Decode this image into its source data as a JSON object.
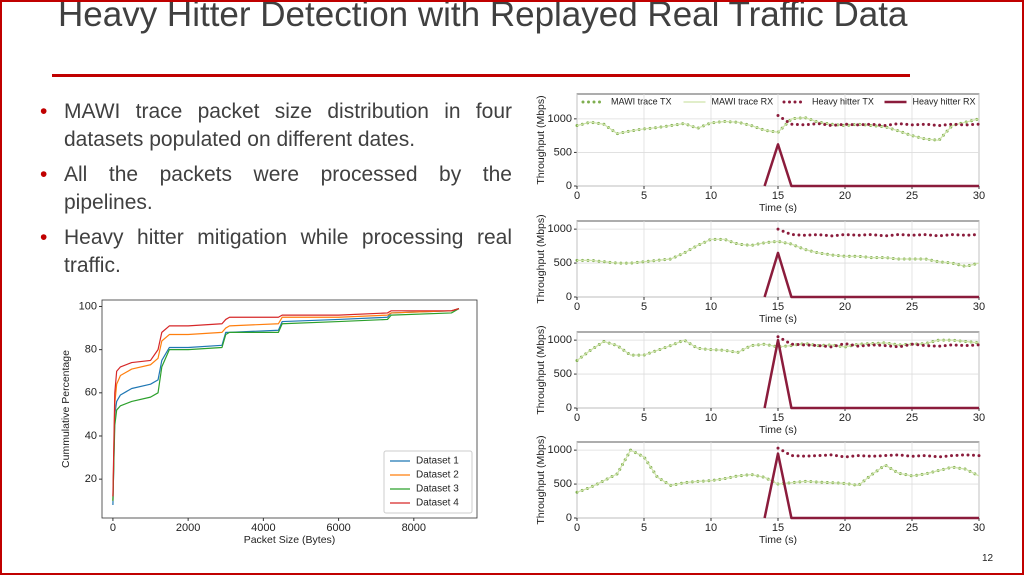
{
  "title": "Heavy Hitter Detection with Replayed Real Traffic Data",
  "bullets": [
    "MAWI trace packet size distribution in four datasets populated on different dates.",
    "All the packets were processed by the pipelines.",
    "Heavy hitter mitigation while processing real traffic."
  ],
  "page_number": "12",
  "chart_data": [
    {
      "type": "line",
      "x_label": "Packet Size (Bytes)",
      "y_label": "Cummulative Percentage",
      "grid": false,
      "legend": "lower right",
      "xlim": [
        -290,
        9680
      ],
      "xticks": [
        0,
        2000,
        4000,
        6000,
        8000
      ],
      "ylim": [
        2,
        103
      ],
      "yticks": [
        20,
        40,
        60,
        80,
        100
      ],
      "x": [
        0,
        50,
        100,
        200,
        500,
        1000,
        1200,
        1300,
        1500,
        2000,
        2900,
        3000,
        3100,
        4400,
        4500,
        6000,
        7300,
        7400,
        9000,
        9200
      ],
      "series": [
        {
          "name": "Dataset 1",
          "color": "#1f77b4",
          "line_style": "solid",
          "line_width": 1.2,
          "values": [
            8,
            50,
            56,
            59,
            62,
            64,
            66,
            75,
            81,
            81,
            82,
            88,
            88,
            89,
            93,
            94,
            95,
            97,
            98,
            99
          ]
        },
        {
          "name": "Dataset 2",
          "color": "#ff7f0e",
          "line_style": "solid",
          "line_width": 1.2,
          "values": [
            10,
            55,
            64,
            68,
            71,
            73,
            76,
            84,
            87,
            87,
            88,
            90,
            91,
            92,
            95,
            95,
            96,
            97,
            98,
            99
          ]
        },
        {
          "name": "Dataset 3",
          "color": "#2ca02c",
          "line_style": "solid",
          "line_width": 1.2,
          "values": [
            10,
            45,
            52,
            54,
            56,
            58,
            60,
            72,
            80,
            80,
            81,
            87,
            88,
            88,
            92,
            93,
            94,
            96,
            97,
            99
          ]
        },
        {
          "name": "Dataset 4",
          "color": "#d62728",
          "line_style": "solid",
          "line_width": 1.2,
          "values": [
            12,
            60,
            70,
            72,
            74,
            75,
            80,
            88,
            91,
            91,
            92,
            94,
            95,
            95,
            96,
            96,
            97,
            98,
            98,
            99
          ]
        }
      ]
    },
    {
      "type": "line",
      "x_label": "Time (s)",
      "y_label": "Throughput (Mbps)",
      "grid": true,
      "legend": "top",
      "xlim": [
        0,
        30
      ],
      "xticks": [
        0,
        5,
        10,
        15,
        20,
        25,
        30
      ],
      "ylim": [
        0,
        1370
      ],
      "yticks": [
        0,
        500,
        1000
      ],
      "x": [
        0,
        1,
        2,
        3,
        4,
        5,
        6,
        7,
        8,
        9,
        10,
        11,
        12,
        13,
        14,
        15,
        16,
        17,
        18,
        19,
        20,
        21,
        22,
        23,
        24,
        25,
        26,
        27,
        28,
        29,
        30
      ],
      "series": [
        {
          "name": "MAWI trace TX",
          "color": "#7fae4f",
          "line_style": "dotted",
          "line_width": 3,
          "values": [
            900,
            950,
            920,
            780,
            820,
            850,
            870,
            900,
            930,
            860,
            940,
            960,
            950,
            900,
            830,
            800,
            1000,
            1020,
            950,
            920,
            900,
            920,
            900,
            880,
            820,
            750,
            700,
            680,
            900,
            950,
            1000
          ]
        },
        {
          "name": "MAWI trace RX",
          "color": "#cfe3ab",
          "line_style": "solid",
          "line_width": 1.2,
          "values": [
            900,
            950,
            920,
            780,
            820,
            850,
            870,
            900,
            930,
            860,
            940,
            960,
            950,
            900,
            830,
            800,
            1000,
            1020,
            950,
            920,
            900,
            920,
            900,
            880,
            820,
            750,
            700,
            680,
            900,
            950,
            1000
          ]
        },
        {
          "name": "Heavy hitter TX",
          "color": "#8b1c3c",
          "line_style": "dotted",
          "line_width": 3,
          "values": [
            null,
            null,
            null,
            null,
            null,
            null,
            null,
            null,
            null,
            null,
            null,
            null,
            null,
            null,
            null,
            1050,
            920,
            910,
            930,
            900,
            920,
            910,
            920,
            900,
            930,
            910,
            920,
            900,
            920,
            910,
            920
          ]
        },
        {
          "name": "Heavy hitter RX",
          "color": "#8b1c3c",
          "line_style": "solid",
          "line_width": 2.5,
          "values": [
            null,
            null,
            null,
            null,
            null,
            null,
            null,
            null,
            null,
            null,
            null,
            null,
            null,
            null,
            0,
            620,
            0,
            0,
            0,
            0,
            0,
            0,
            0,
            0,
            0,
            0,
            0,
            0,
            0,
            0,
            0
          ]
        }
      ]
    },
    {
      "type": "line",
      "x_label": "Time (s)",
      "y_label": "Throughput (Mbps)",
      "grid": true,
      "xlim": [
        0,
        30
      ],
      "xticks": [
        0,
        5,
        10,
        15,
        20,
        25,
        30
      ],
      "ylim": [
        0,
        1120
      ],
      "yticks": [
        0,
        500,
        1000
      ],
      "x": [
        0,
        1,
        2,
        3,
        4,
        5,
        6,
        7,
        8,
        9,
        10,
        11,
        12,
        13,
        14,
        15,
        16,
        17,
        18,
        19,
        20,
        21,
        22,
        23,
        24,
        25,
        26,
        27,
        28,
        29,
        30
      ],
      "series": [
        {
          "color": "#7fae4f",
          "line_style": "dotted",
          "line_width": 3,
          "values": [
            540,
            540,
            520,
            500,
            500,
            520,
            540,
            560,
            650,
            760,
            850,
            850,
            780,
            760,
            800,
            820,
            780,
            700,
            650,
            620,
            600,
            600,
            580,
            580,
            560,
            560,
            560,
            520,
            500,
            450,
            500
          ]
        },
        {
          "color": "#cfe3ab",
          "line_style": "solid",
          "line_width": 1.2,
          "values": [
            540,
            540,
            520,
            500,
            500,
            520,
            540,
            560,
            650,
            760,
            850,
            850,
            780,
            760,
            800,
            820,
            780,
            700,
            650,
            620,
            600,
            600,
            580,
            580,
            560,
            560,
            560,
            520,
            500,
            450,
            500
          ]
        },
        {
          "color": "#8b1c3c",
          "line_style": "dotted",
          "line_width": 3,
          "values": [
            null,
            null,
            null,
            null,
            null,
            null,
            null,
            null,
            null,
            null,
            null,
            null,
            null,
            null,
            null,
            1000,
            920,
            910,
            920,
            900,
            920,
            910,
            920,
            900,
            920,
            910,
            920,
            900,
            920,
            910,
            920
          ]
        },
        {
          "color": "#8b1c3c",
          "line_style": "solid",
          "line_width": 2.5,
          "values": [
            null,
            null,
            null,
            null,
            null,
            null,
            null,
            null,
            null,
            null,
            null,
            null,
            null,
            null,
            0,
            650,
            0,
            0,
            0,
            0,
            0,
            0,
            0,
            0,
            0,
            0,
            0,
            0,
            0,
            0,
            0
          ]
        }
      ]
    },
    {
      "type": "line",
      "x_label": "Time (s)",
      "y_label": "Throughput (Mbps)",
      "grid": true,
      "xlim": [
        0,
        30
      ],
      "xticks": [
        0,
        5,
        10,
        15,
        20,
        25,
        30
      ],
      "ylim": [
        0,
        1120
      ],
      "yticks": [
        0,
        500,
        1000
      ],
      "x": [
        0,
        1,
        2,
        3,
        4,
        5,
        6,
        7,
        8,
        9,
        10,
        11,
        12,
        13,
        14,
        15,
        16,
        17,
        18,
        19,
        20,
        21,
        22,
        23,
        24,
        25,
        26,
        27,
        28,
        29,
        30
      ],
      "series": [
        {
          "color": "#7fae4f",
          "line_style": "dotted",
          "line_width": 3,
          "values": [
            700,
            850,
            980,
            920,
            780,
            780,
            850,
            920,
            1000,
            880,
            860,
            850,
            820,
            920,
            940,
            900,
            920,
            950,
            920,
            930,
            900,
            940,
            950,
            960,
            930,
            940,
            950,
            1000,
            1000,
            980,
            960
          ]
        },
        {
          "color": "#cfe3ab",
          "line_style": "solid",
          "line_width": 1.2,
          "values": [
            700,
            850,
            980,
            920,
            780,
            780,
            850,
            920,
            1000,
            880,
            860,
            850,
            820,
            920,
            940,
            900,
            920,
            950,
            920,
            930,
            900,
            940,
            950,
            960,
            930,
            940,
            950,
            1000,
            1000,
            980,
            960
          ]
        },
        {
          "color": "#8b1c3c",
          "line_style": "dotted",
          "line_width": 3,
          "values": [
            null,
            null,
            null,
            null,
            null,
            null,
            null,
            null,
            null,
            null,
            null,
            null,
            null,
            null,
            null,
            1050,
            940,
            930,
            920,
            900,
            950,
            910,
            930,
            920,
            900,
            940,
            920,
            910,
            930,
            920,
            930
          ]
        },
        {
          "color": "#8b1c3c",
          "line_style": "solid",
          "line_width": 2.5,
          "values": [
            null,
            null,
            null,
            null,
            null,
            null,
            null,
            null,
            null,
            null,
            null,
            null,
            null,
            null,
            0,
            1000,
            0,
            0,
            0,
            0,
            0,
            0,
            0,
            0,
            0,
            0,
            0,
            0,
            0,
            0,
            0
          ]
        }
      ]
    },
    {
      "type": "line",
      "x_label": "Time (s)",
      "y_label": "Throughput (Mbps)",
      "grid": true,
      "xlim": [
        0,
        30
      ],
      "xticks": [
        0,
        5,
        10,
        15,
        20,
        25,
        30
      ],
      "ylim": [
        0,
        1120
      ],
      "yticks": [
        0,
        500,
        1000
      ],
      "x": [
        0,
        1,
        2,
        3,
        4,
        5,
        6,
        7,
        8,
        9,
        10,
        11,
        12,
        13,
        14,
        15,
        16,
        17,
        18,
        19,
        20,
        21,
        22,
        23,
        24,
        25,
        26,
        27,
        28,
        29,
        30
      ],
      "series": [
        {
          "color": "#7fae4f",
          "line_style": "dotted",
          "line_width": 3,
          "values": [
            380,
            450,
            550,
            650,
            1000,
            900,
            600,
            480,
            520,
            540,
            550,
            580,
            620,
            640,
            600,
            500,
            520,
            540,
            530,
            520,
            510,
            480,
            640,
            780,
            660,
            620,
            650,
            700,
            750,
            720,
            620
          ]
        },
        {
          "color": "#cfe3ab",
          "line_style": "solid",
          "line_width": 1.2,
          "values": [
            380,
            450,
            550,
            650,
            1000,
            900,
            600,
            480,
            520,
            540,
            550,
            580,
            620,
            640,
            600,
            500,
            520,
            540,
            530,
            520,
            510,
            480,
            640,
            780,
            660,
            620,
            650,
            700,
            750,
            720,
            620
          ]
        },
        {
          "color": "#8b1c3c",
          "line_style": "dotted",
          "line_width": 3,
          "values": [
            null,
            null,
            null,
            null,
            null,
            null,
            null,
            null,
            null,
            null,
            null,
            null,
            null,
            null,
            null,
            1030,
            920,
            910,
            920,
            930,
            900,
            920,
            910,
            920,
            930,
            910,
            920,
            900,
            920,
            930,
            920
          ]
        },
        {
          "color": "#8b1c3c",
          "line_style": "solid",
          "line_width": 2.5,
          "values": [
            null,
            null,
            null,
            null,
            null,
            null,
            null,
            null,
            null,
            null,
            null,
            null,
            null,
            null,
            0,
            950,
            0,
            0,
            0,
            0,
            0,
            0,
            0,
            0,
            0,
            0,
            0,
            0,
            0,
            0,
            0
          ]
        }
      ]
    }
  ]
}
